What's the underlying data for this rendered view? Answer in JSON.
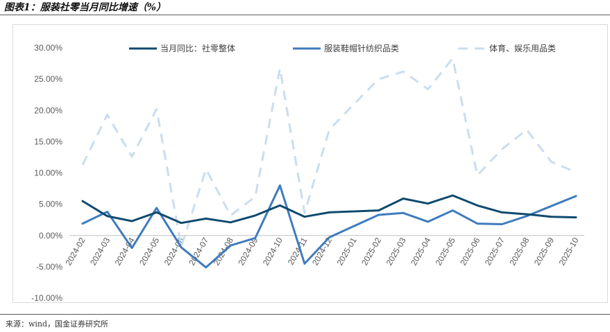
{
  "header": {
    "title": "图表1：服装社零当月同比增速（%）"
  },
  "footer": {
    "source": "来源：wind，国金证券研究所"
  },
  "colors": {
    "total": "#0e4a6e",
    "apparel": "#3f7bbd",
    "sports": "#c9ddef",
    "axis": "#bfbfbf",
    "tick_text": "#595959"
  },
  "chart_data": {
    "type": "line",
    "title": "",
    "xlabel": "",
    "ylabel": "",
    "ylim": [
      -10,
      30
    ],
    "y_ticks": [
      30,
      25,
      20,
      15,
      10,
      5,
      0,
      -5,
      -10
    ],
    "y_tick_labels": [
      "30.00%",
      "25.00%",
      "20.00%",
      "15.00%",
      "10.00%",
      "5.00%",
      "0.00%",
      "-5.00%",
      "-10.00%"
    ],
    "grid": false,
    "legend_position": "top",
    "categories": [
      "2024-02",
      "2024-03",
      "2024-04",
      "2024-05",
      "2024-06",
      "2024-07",
      "2024-08",
      "2024-09",
      "2024-10",
      "2024-11",
      "2024-12",
      "2025-01",
      "2025-02",
      "2025-03",
      "2025-04",
      "2025-05",
      "2025-06",
      "2025-07",
      "2025-08",
      "2025-09",
      "2025-10"
    ],
    "series": [
      {
        "name": "当月同比：社零整体",
        "color": "#0e4a6e",
        "style": "solid",
        "values": [
          5.5,
          3.1,
          2.3,
          3.7,
          2.0,
          2.7,
          2.1,
          3.2,
          4.8,
          3.0,
          3.7,
          3.85,
          4.0,
          5.9,
          5.1,
          6.4,
          4.8,
          3.7,
          3.4,
          3.0,
          2.9
        ]
      },
      {
        "name": "服装鞋帽针纺织品类",
        "color": "#3f7bbd",
        "style": "solid",
        "values": [
          1.9,
          3.8,
          -2.0,
          4.4,
          -1.9,
          -5.1,
          -1.6,
          -0.4,
          8.0,
          -4.5,
          -0.3,
          1.5,
          3.3,
          3.6,
          2.2,
          4.0,
          1.9,
          1.8,
          3.1,
          4.7,
          6.3
        ]
      },
      {
        "name": "体育、娱乐用品类",
        "color": "#c9ddef",
        "style": "dashed",
        "values": [
          11.3,
          19.3,
          12.6,
          20.2,
          -1.8,
          10.6,
          3.2,
          6.2,
          26.7,
          3.6,
          16.9,
          21.0,
          25.0,
          26.2,
          23.4,
          28.3,
          9.6,
          13.8,
          16.9,
          11.8,
          10.1
        ]
      }
    ]
  }
}
